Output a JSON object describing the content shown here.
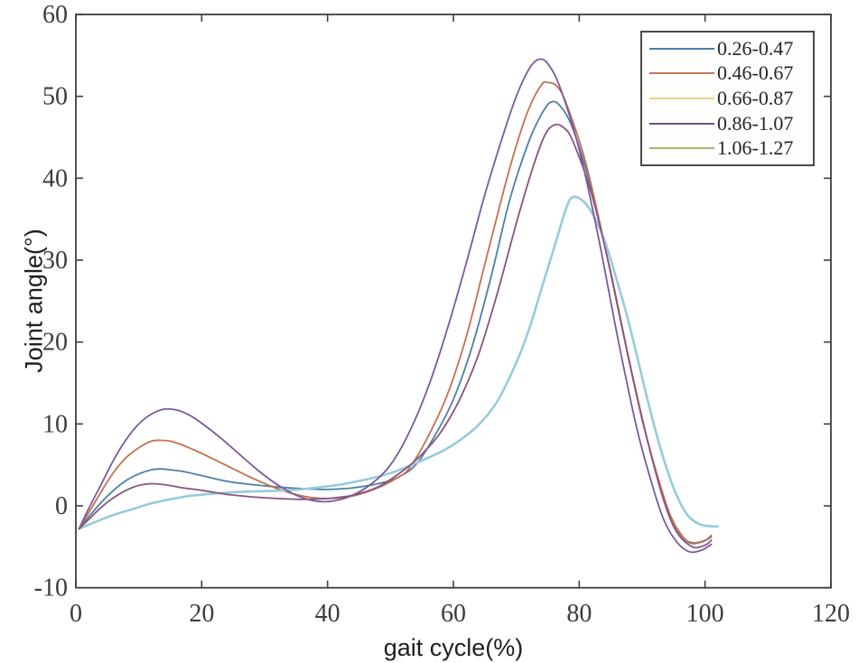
{
  "figure": {
    "background": "#ffffff",
    "spine_color": "#3f3f3f",
    "tick_color": "#3f3f3f",
    "tick_label_color": "#3c3c3c"
  },
  "chart_data": {
    "type": "line",
    "title": "",
    "xlabel": "gait cycle(%)",
    "ylabel": "Joint angle(°)",
    "xlim": [
      0,
      120
    ],
    "ylim": [
      -10,
      60
    ],
    "xticks": [
      0,
      20,
      40,
      60,
      80,
      100,
      120
    ],
    "yticks": [
      -10,
      0,
      10,
      20,
      30,
      40,
      50,
      60
    ],
    "grid": false,
    "box": true,
    "tick_direction": "in",
    "legend": {
      "position": "top-right",
      "border": true
    },
    "series": [
      {
        "name": "0.26-0.47",
        "color": "#4d80a8",
        "legend_color": "#4d80a8",
        "width": 1.8,
        "points": [
          [
            0.5,
            -2.8
          ],
          [
            2,
            -1.4
          ],
          [
            4,
            0.4
          ],
          [
            6,
            1.9
          ],
          [
            8,
            3.1
          ],
          [
            10,
            3.9
          ],
          [
            12,
            4.4
          ],
          [
            13.5,
            4.5
          ],
          [
            15,
            4.4
          ],
          [
            17,
            4.2
          ],
          [
            20,
            3.7
          ],
          [
            24,
            3.0
          ],
          [
            28,
            2.6
          ],
          [
            32,
            2.3
          ],
          [
            36,
            2.1
          ],
          [
            40,
            2.0
          ],
          [
            44,
            2.2
          ],
          [
            48,
            2.7
          ],
          [
            51,
            3.4
          ],
          [
            54,
            5.0
          ],
          [
            57,
            8.5
          ],
          [
            60,
            13.0
          ],
          [
            63,
            19.5
          ],
          [
            66,
            28.0
          ],
          [
            69,
            37.5
          ],
          [
            72,
            44.5
          ],
          [
            74,
            47.8
          ],
          [
            75.5,
            49.3
          ],
          [
            77,
            48.8
          ],
          [
            79,
            46.0
          ],
          [
            82,
            38.5
          ],
          [
            85,
            28.5
          ],
          [
            88,
            17.5
          ],
          [
            91,
            7.5
          ],
          [
            93.5,
            0.8
          ],
          [
            95.5,
            -2.8
          ],
          [
            97.5,
            -4.5
          ],
          [
            99.5,
            -4.4
          ],
          [
            101,
            -3.8
          ]
        ]
      },
      {
        "name": "0.46-0.67",
        "color": "#c4714d",
        "legend_color": "#bf7a58",
        "width": 1.8,
        "points": [
          [
            0.5,
            -2.8
          ],
          [
            2,
            -0.9
          ],
          [
            4,
            1.7
          ],
          [
            6,
            4.1
          ],
          [
            8,
            5.9
          ],
          [
            10,
            7.1
          ],
          [
            12,
            7.9
          ],
          [
            13.5,
            8.0
          ],
          [
            15,
            7.9
          ],
          [
            17,
            7.4
          ],
          [
            20,
            6.4
          ],
          [
            24,
            4.9
          ],
          [
            28,
            3.4
          ],
          [
            32,
            2.1
          ],
          [
            36,
            1.2
          ],
          [
            40,
            0.9
          ],
          [
            44,
            1.2
          ],
          [
            48,
            2.2
          ],
          [
            51,
            3.4
          ],
          [
            53,
            4.6
          ],
          [
            56,
            8.5
          ],
          [
            59,
            13.5
          ],
          [
            62,
            20.5
          ],
          [
            65,
            29.5
          ],
          [
            68,
            38.5
          ],
          [
            70,
            44.0
          ],
          [
            72,
            48.5
          ],
          [
            74,
            51.4
          ],
          [
            75,
            51.7
          ],
          [
            76.5,
            51.2
          ],
          [
            78,
            49.0
          ],
          [
            81,
            42.0
          ],
          [
            84,
            32.0
          ],
          [
            87,
            21.0
          ],
          [
            90,
            10.5
          ],
          [
            92.5,
            3.5
          ],
          [
            94.5,
            -1.2
          ],
          [
            96.5,
            -3.8
          ],
          [
            98,
            -4.5
          ],
          [
            100,
            -4.2
          ],
          [
            101,
            -3.6
          ]
        ]
      },
      {
        "name": "0.66-0.87",
        "color": "#96cbdc",
        "legend_color": "#e3d48e",
        "width": 2.6,
        "points": [
          [
            0.5,
            -2.8
          ],
          [
            3,
            -2.0
          ],
          [
            6,
            -1.1
          ],
          [
            9,
            -0.4
          ],
          [
            12,
            0.3
          ],
          [
            15,
            0.8
          ],
          [
            18,
            1.2
          ],
          [
            22,
            1.5
          ],
          [
            26,
            1.7
          ],
          [
            30,
            1.8
          ],
          [
            34,
            1.9
          ],
          [
            38,
            2.2
          ],
          [
            42,
            2.6
          ],
          [
            46,
            3.2
          ],
          [
            50,
            4.0
          ],
          [
            54,
            5.2
          ],
          [
            58,
            6.6
          ],
          [
            61,
            8.0
          ],
          [
            64,
            9.9
          ],
          [
            67,
            12.8
          ],
          [
            70,
            17.5
          ],
          [
            72,
            21.5
          ],
          [
            74,
            26.5
          ],
          [
            76,
            31.5
          ],
          [
            78,
            36.5
          ],
          [
            79,
            37.7
          ],
          [
            80.5,
            37.3
          ],
          [
            82,
            35.8
          ],
          [
            84,
            32.5
          ],
          [
            86,
            27.5
          ],
          [
            88,
            22.0
          ],
          [
            91,
            12.5
          ],
          [
            93,
            6.8
          ],
          [
            95,
            2.2
          ],
          [
            97,
            -0.9
          ],
          [
            99,
            -2.2
          ],
          [
            101,
            -2.5
          ],
          [
            102,
            -2.5
          ]
        ]
      },
      {
        "name": "0.86-1.07",
        "color": "#7b59a0",
        "legend_color": "#6e4f85",
        "width": 1.8,
        "points": [
          [
            0.5,
            -2.8
          ],
          [
            2,
            -0.4
          ],
          [
            4,
            2.6
          ],
          [
            6,
            5.6
          ],
          [
            8,
            8.1
          ],
          [
            10,
            10.0
          ],
          [
            12,
            11.2
          ],
          [
            14,
            11.8
          ],
          [
            16,
            11.7
          ],
          [
            18,
            11.1
          ],
          [
            20,
            10.1
          ],
          [
            23,
            8.3
          ],
          [
            26,
            6.3
          ],
          [
            29,
            4.3
          ],
          [
            32,
            2.6
          ],
          [
            35,
            1.3
          ],
          [
            38,
            0.6
          ],
          [
            41,
            0.6
          ],
          [
            44,
            1.3
          ],
          [
            47,
            2.7
          ],
          [
            50,
            5.0
          ],
          [
            53,
            9.0
          ],
          [
            56,
            14.5
          ],
          [
            59,
            21.5
          ],
          [
            62,
            29.5
          ],
          [
            65,
            38.0
          ],
          [
            68,
            45.5
          ],
          [
            70,
            50.0
          ],
          [
            72,
            53.3
          ],
          [
            73.5,
            54.5
          ],
          [
            75,
            54.0
          ],
          [
            77,
            51.0
          ],
          [
            80,
            43.5
          ],
          [
            83,
            33.0
          ],
          [
            86,
            21.0
          ],
          [
            89,
            10.0
          ],
          [
            91.5,
            2.8
          ],
          [
            93.5,
            -1.8
          ],
          [
            95.5,
            -4.4
          ],
          [
            97.5,
            -5.6
          ],
          [
            99.5,
            -5.4
          ],
          [
            101,
            -4.7
          ]
        ]
      },
      {
        "name": "1.06-1.27",
        "color": "#8a5480",
        "legend_color": "#adb26d",
        "width": 1.8,
        "points": [
          [
            0.5,
            -2.8
          ],
          [
            2,
            -1.7
          ],
          [
            4,
            -0.2
          ],
          [
            6,
            1.0
          ],
          [
            8,
            1.9
          ],
          [
            10,
            2.5
          ],
          [
            12,
            2.7
          ],
          [
            14,
            2.6
          ],
          [
            17,
            2.2
          ],
          [
            20,
            1.9
          ],
          [
            24,
            1.4
          ],
          [
            28,
            1.1
          ],
          [
            32,
            0.9
          ],
          [
            36,
            0.8
          ],
          [
            40,
            0.9
          ],
          [
            44,
            1.3
          ],
          [
            48,
            2.3
          ],
          [
            52,
            4.3
          ],
          [
            55,
            6.3
          ],
          [
            58,
            9.0
          ],
          [
            61,
            13.0
          ],
          [
            64,
            18.5
          ],
          [
            67,
            26.0
          ],
          [
            70,
            34.5
          ],
          [
            72.5,
            41.0
          ],
          [
            74.5,
            45.2
          ],
          [
            76,
            46.5
          ],
          [
            77.5,
            46.2
          ],
          [
            79,
            44.5
          ],
          [
            82,
            38.0
          ],
          [
            85,
            28.5
          ],
          [
            88,
            17.5
          ],
          [
            91,
            7.5
          ],
          [
            93.5,
            0.5
          ],
          [
            95.5,
            -3.2
          ],
          [
            98,
            -5.0
          ],
          [
            100,
            -4.8
          ],
          [
            101,
            -4.2
          ]
        ]
      }
    ]
  }
}
